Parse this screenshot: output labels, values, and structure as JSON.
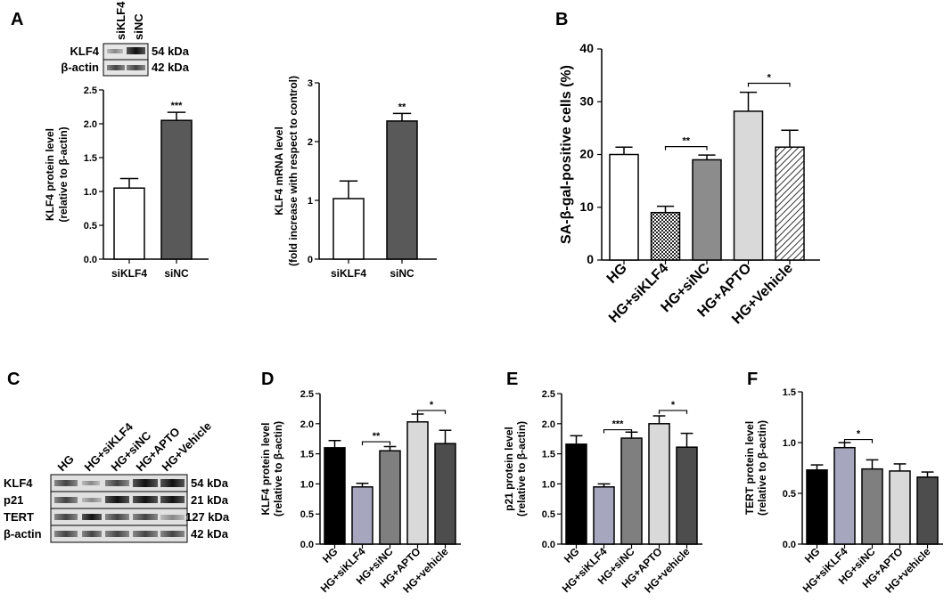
{
  "panels": {
    "A": "A",
    "B": "B",
    "C": "C",
    "D": "D",
    "E": "E",
    "F": "F"
  },
  "blot_A": {
    "lanes": [
      "siKLF4",
      "siNC"
    ],
    "rows": [
      {
        "protein": "KLF4",
        "size": "54 kDa"
      },
      {
        "protein": "β-actin",
        "size": "42 kDa"
      }
    ]
  },
  "blot_C": {
    "lanes": [
      "HG",
      "HG+siKLF4",
      "HG+siNC",
      "HG+APTO",
      "HG+Vehicle"
    ],
    "rows": [
      {
        "protein": "KLF4",
        "size": "54 kDa"
      },
      {
        "protein": "p21",
        "size": "21 kDa"
      },
      {
        "protein": "TERT",
        "size": "127 kDa"
      },
      {
        "protein": "β-actin",
        "size": "42 kDa"
      }
    ]
  },
  "chart_data": [
    {
      "id": "A1",
      "type": "bar",
      "ylabel_lines": [
        "KLF4 protein level",
        "(relative to β-actin)"
      ],
      "categories": [
        "siKLF4",
        "siNC"
      ],
      "values": [
        1.05,
        2.05
      ],
      "errors": [
        0.14,
        0.12
      ],
      "fills": [
        "#ffffff",
        "#595959"
      ],
      "ylim": [
        0,
        2.5
      ],
      "yticks": [
        "0.0",
        "0.5",
        "1.0",
        "1.5",
        "2.0",
        "2.5"
      ],
      "ytick_values": [
        0,
        0.5,
        1.0,
        1.5,
        2.0,
        2.5
      ],
      "bar_annotations": [
        "",
        "***"
      ],
      "brackets": []
    },
    {
      "id": "A2",
      "type": "bar",
      "ylabel_lines": [
        "KLF4 mRNA level",
        "(fold increase with respect to control)"
      ],
      "categories": [
        "siKLF4",
        "siNC"
      ],
      "values": [
        1.03,
        2.35
      ],
      "errors": [
        0.3,
        0.13
      ],
      "fills": [
        "#ffffff",
        "#595959"
      ],
      "ylim": [
        0,
        3
      ],
      "yticks": [
        "0",
        "1",
        "2",
        "3"
      ],
      "ytick_values": [
        0,
        1,
        2,
        3
      ],
      "bar_annotations": [
        "",
        "**"
      ],
      "brackets": []
    },
    {
      "id": "B",
      "type": "bar",
      "ylabel_lines": [
        "SA-β-gal-positive cells (%)"
      ],
      "categories": [
        "HG",
        "HG+siKLF4",
        "HG+siNC",
        "HG+APTO",
        "HG+Vehicle"
      ],
      "values": [
        20,
        9,
        19,
        28.2,
        21.4
      ],
      "errors": [
        1.4,
        1.2,
        0.9,
        3.6,
        3.2
      ],
      "fills": [
        "#ffffff",
        "checker",
        "#8c8c8c",
        "#d9d9d9",
        "hatch"
      ],
      "ylim": [
        0,
        40
      ],
      "yticks": [
        "0",
        "10",
        "20",
        "30",
        "40"
      ],
      "ytick_values": [
        0,
        10,
        20,
        30,
        40
      ],
      "bar_annotations": [
        "",
        "",
        "",
        "",
        ""
      ],
      "brackets": [
        {
          "from": 1,
          "to": 2,
          "y": 21.5,
          "label": "**"
        },
        {
          "from": 3,
          "to": 4,
          "y": 33.5,
          "label": "*"
        }
      ]
    },
    {
      "id": "D",
      "type": "bar",
      "ylabel_lines": [
        "KLF4 protein level",
        "(relative to β-actin)"
      ],
      "categories": [
        "HG",
        "HG+siKLF4",
        "HG+siNC",
        "HG+APTO",
        "HG+vehicle"
      ],
      "values": [
        1.6,
        0.95,
        1.55,
        2.03,
        1.67
      ],
      "errors": [
        0.12,
        0.06,
        0.07,
        0.13,
        0.22
      ],
      "fills": [
        "#000000",
        "#a6a6bf",
        "#7f7f7f",
        "#d9d9d9",
        "#4d4d4d"
      ],
      "ylim": [
        0,
        2.5
      ],
      "yticks": [
        "0.0",
        "0.5",
        "1.0",
        "1.5",
        "2.0",
        "2.5"
      ],
      "ytick_values": [
        0,
        0.5,
        1.0,
        1.5,
        2.0,
        2.5
      ],
      "bar_annotations": [
        "",
        "",
        "",
        "",
        ""
      ],
      "brackets": [
        {
          "from": 1,
          "to": 2,
          "y": 1.7,
          "label": "**"
        },
        {
          "from": 3,
          "to": 4,
          "y": 2.22,
          "label": "*"
        }
      ]
    },
    {
      "id": "E",
      "type": "bar",
      "ylabel_lines": [
        "p21 protein level",
        "(relative to β-actin)"
      ],
      "categories": [
        "HG",
        "HG+siKLF4",
        "HG+siNC",
        "HG+APTO",
        "HG+vehicle"
      ],
      "values": [
        1.66,
        0.95,
        1.76,
        2.0,
        1.61
      ],
      "errors": [
        0.14,
        0.05,
        0.1,
        0.13,
        0.23
      ],
      "fills": [
        "#000000",
        "#a6a6bf",
        "#7f7f7f",
        "#d9d9d9",
        "#4d4d4d"
      ],
      "ylim": [
        0,
        2.5
      ],
      "yticks": [
        "0.0",
        "0.5",
        "1.0",
        "1.5",
        "2.0",
        "2.5"
      ],
      "ytick_values": [
        0,
        0.5,
        1.0,
        1.5,
        2.0,
        2.5
      ],
      "bar_annotations": [
        "",
        "",
        "",
        "",
        ""
      ],
      "brackets": [
        {
          "from": 1,
          "to": 2,
          "y": 1.9,
          "label": "***"
        },
        {
          "from": 3,
          "to": 4,
          "y": 2.22,
          "label": "*"
        }
      ]
    },
    {
      "id": "F",
      "type": "bar",
      "ylabel_lines": [
        "TERT protein level",
        "(relative to β-actin)"
      ],
      "categories": [
        "HG",
        "HG+siKLF4",
        "HG+siNC",
        "HG+APTO",
        "HG+vehicle"
      ],
      "values": [
        0.73,
        0.95,
        0.74,
        0.72,
        0.66
      ],
      "errors": [
        0.05,
        0.05,
        0.09,
        0.07,
        0.05
      ],
      "fills": [
        "#000000",
        "#a6a6bf",
        "#7f7f7f",
        "#d9d9d9",
        "#4d4d4d"
      ],
      "ylim": [
        0,
        1.5
      ],
      "yticks": [
        "0.0",
        "0.5",
        "1.0",
        "1.5"
      ],
      "ytick_values": [
        0,
        0.5,
        1.0,
        1.5
      ],
      "bar_annotations": [
        "",
        "",
        "",
        "",
        ""
      ],
      "brackets": [
        {
          "from": 1,
          "to": 2,
          "y": 1.03,
          "label": "*"
        }
      ]
    }
  ]
}
